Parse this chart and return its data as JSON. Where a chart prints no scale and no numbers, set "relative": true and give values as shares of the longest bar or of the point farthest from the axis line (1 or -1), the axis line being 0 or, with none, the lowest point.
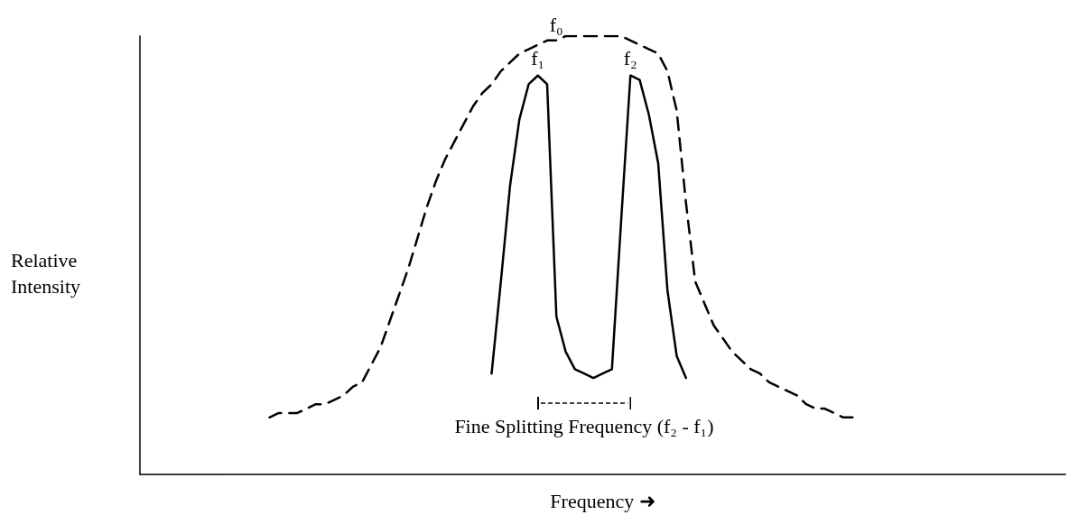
{
  "chart_data": {
    "type": "line",
    "relative": true,
    "xlabel": "Frequency ➜",
    "ylabel": "Relative\nIntensity",
    "categories": [
      null,
      null,
      null,
      null,
      null,
      null,
      null,
      null,
      null,
      null,
      null,
      null,
      null,
      null,
      null,
      null,
      null,
      null,
      null,
      null,
      null,
      null,
      null,
      null,
      null,
      null,
      null,
      null,
      null,
      null,
      null,
      null,
      null,
      null,
      null,
      null,
      null,
      null,
      null,
      null,
      null,
      null,
      null,
      null,
      null,
      null,
      null,
      null,
      null,
      null,
      null,
      null,
      null,
      null,
      null,
      null,
      null,
      null,
      null,
      null,
      null,
      null,
      null,
      null,
      null,
      null,
      null,
      null,
      null,
      null,
      null,
      null,
      null,
      null,
      null,
      null,
      null,
      null,
      null,
      null,
      null,
      null,
      null,
      null,
      null,
      null,
      null,
      null,
      null,
      null,
      null,
      null,
      null,
      null,
      null,
      null,
      null,
      null,
      null,
      null,
      null
    ],
    "series": [
      {
        "color": "#000000",
        "line_style": "dashed",
        "values": [
          null,
          null,
          null,
          null,
          null,
          null,
          null,
          null,
          null,
          null,
          null,
          null,
          null,
          null,
          0.13,
          0.14,
          0.14,
          0.14,
          0.15,
          0.16,
          0.16,
          0.17,
          0.18,
          0.2,
          0.21,
          0.25,
          0.29,
          0.35,
          0.41,
          0.47,
          0.54,
          0.61,
          0.67,
          0.72,
          0.76,
          0.8,
          0.84,
          0.87,
          0.89,
          0.92,
          0.94,
          0.96,
          0.97,
          0.98,
          0.99,
          0.99,
          1.0,
          1.0,
          1.0,
          1.0,
          1.0,
          1.0,
          1.0,
          0.99,
          0.98,
          0.97,
          0.96,
          0.92,
          0.83,
          0.62,
          0.44,
          0.39,
          0.34,
          0.31,
          0.28,
          0.26,
          0.24,
          0.23,
          0.21,
          0.2,
          0.19,
          0.18,
          0.16,
          0.15,
          0.15,
          0.14,
          0.13,
          0.13,
          null,
          null,
          null,
          null,
          null,
          null,
          null,
          null,
          null,
          null,
          null,
          null,
          null,
          null,
          null,
          null,
          null,
          null,
          null,
          null,
          null,
          null,
          null
        ]
      },
      {
        "color": "#000000",
        "line_style": "solid",
        "values": [
          null,
          null,
          null,
          null,
          null,
          null,
          null,
          null,
          null,
          null,
          null,
          null,
          null,
          null,
          null,
          null,
          null,
          null,
          null,
          null,
          null,
          null,
          null,
          null,
          null,
          null,
          null,
          null,
          null,
          null,
          null,
          null,
          null,
          null,
          null,
          null,
          null,
          null,
          0.23,
          0.44,
          0.66,
          0.81,
          0.89,
          0.91,
          0.89,
          0.36,
          0.28,
          0.24,
          0.23,
          0.22,
          0.23,
          0.24,
          0.58,
          0.91,
          0.9,
          0.82,
          0.71,
          0.42,
          0.27,
          0.22,
          null,
          null,
          null,
          null,
          null,
          null,
          null,
          null,
          null,
          null,
          null,
          null,
          null,
          null,
          null,
          null,
          null,
          null,
          null,
          null,
          null,
          null,
          null,
          null,
          null,
          null,
          null,
          null,
          null,
          null,
          null,
          null,
          null,
          null,
          null,
          null,
          null,
          null,
          null,
          null,
          null
        ]
      }
    ],
    "annotations": [
      "f₀",
      "f₁",
      "f₂",
      "Fine Splitting Frequency (f₂ - f₁)"
    ],
    "marker": "none",
    "grid": false
  }
}
